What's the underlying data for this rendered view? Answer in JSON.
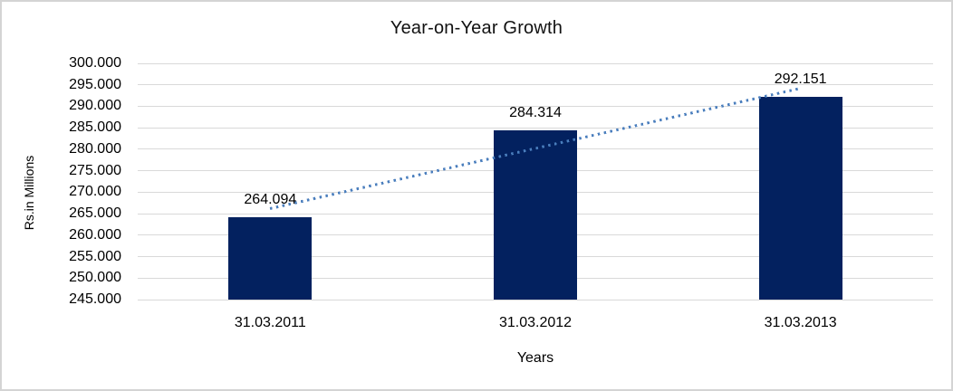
{
  "chart_data": {
    "type": "bar",
    "title": "Year-on-Year Growth",
    "xlabel": "Years",
    "ylabel": "Rs.in Millions",
    "categories": [
      "31.03.2011",
      "31.03.2012",
      "31.03.2013"
    ],
    "values": [
      264.094,
      284.314,
      292.151
    ],
    "value_labels": [
      "264.094",
      "284.314",
      "292.151"
    ],
    "ylim": [
      245,
      300
    ],
    "ytick_step": 5,
    "ytick_labels_top_to_bottom": [
      "300.000",
      "295.000",
      "290.000",
      "285.000",
      "280.000",
      "275.000",
      "270.000",
      "265.000",
      "260.000",
      "255.000",
      "250.000",
      "245.000"
    ],
    "grid": true,
    "legend_position": "none",
    "trendline": {
      "type": "linear",
      "line_style": "dotted",
      "start_value": 266.2,
      "end_value": 294.2
    }
  },
  "colors": {
    "bar_fill": "#03215f",
    "trendline": "#4a7ebd",
    "gridline": "#d9d9d9",
    "text": "#000000",
    "frame_border": "#d4d4d4",
    "background": "#ffffff"
  }
}
